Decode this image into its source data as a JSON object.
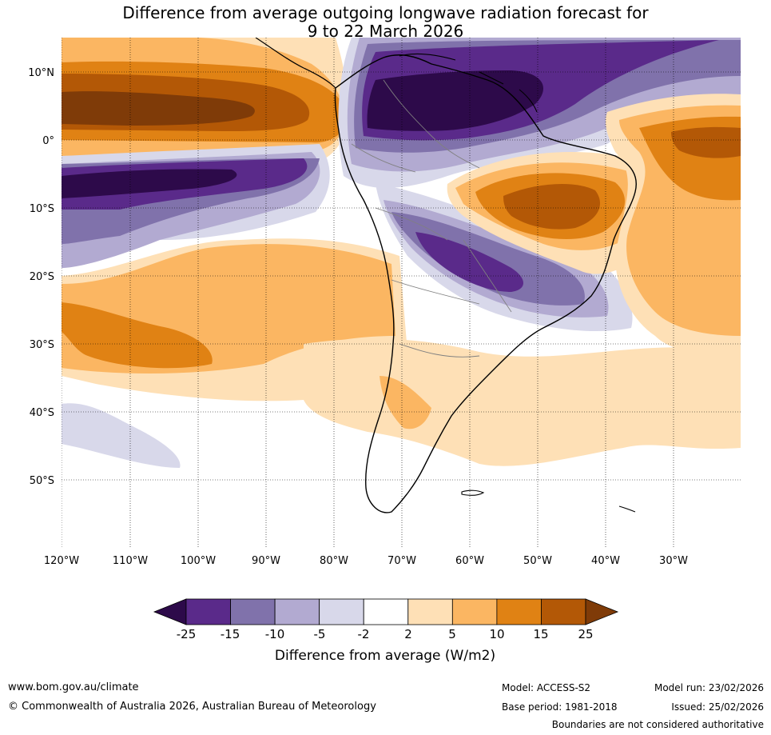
{
  "title": {
    "line1": "Difference from average outgoing longwave radiation forecast for",
    "line2": "9 to 22 March 2026"
  },
  "map": {
    "lat_labels": [
      "10°N",
      "0°",
      "10°S",
      "20°S",
      "30°S",
      "40°S",
      "50°S"
    ],
    "lon_labels": [
      "120°W",
      "110°W",
      "100°W",
      "90°W",
      "80°W",
      "70°W",
      "60°W",
      "50°W",
      "40°W",
      "30°W"
    ]
  },
  "legend": {
    "ticks": [
      "-25",
      "-15",
      "-10",
      "-5",
      "-2",
      "2",
      "5",
      "10",
      "15",
      "25"
    ],
    "label": "Difference from average (W/m2)",
    "colors": [
      "#2d0a4a",
      "#5a2a8a",
      "#8072ab",
      "#b2aad1",
      "#d8d8ea",
      "#ffffff",
      "#fee0b6",
      "#fbb662",
      "#e08214",
      "#b35806",
      "#7f3b08"
    ]
  },
  "footer": {
    "website": "www.bom.gov.au/climate",
    "copyright": "© Commonwealth of Australia 2026, Australian Bureau of Meteorology",
    "model": "Model: ACCESS-S2",
    "base_period": "Base period: 1981-2018",
    "model_run": "Model run: 23/02/2026",
    "issued": "Issued: 25/02/2026",
    "disclaimer": "Boundaries are not considered authoritative"
  }
}
